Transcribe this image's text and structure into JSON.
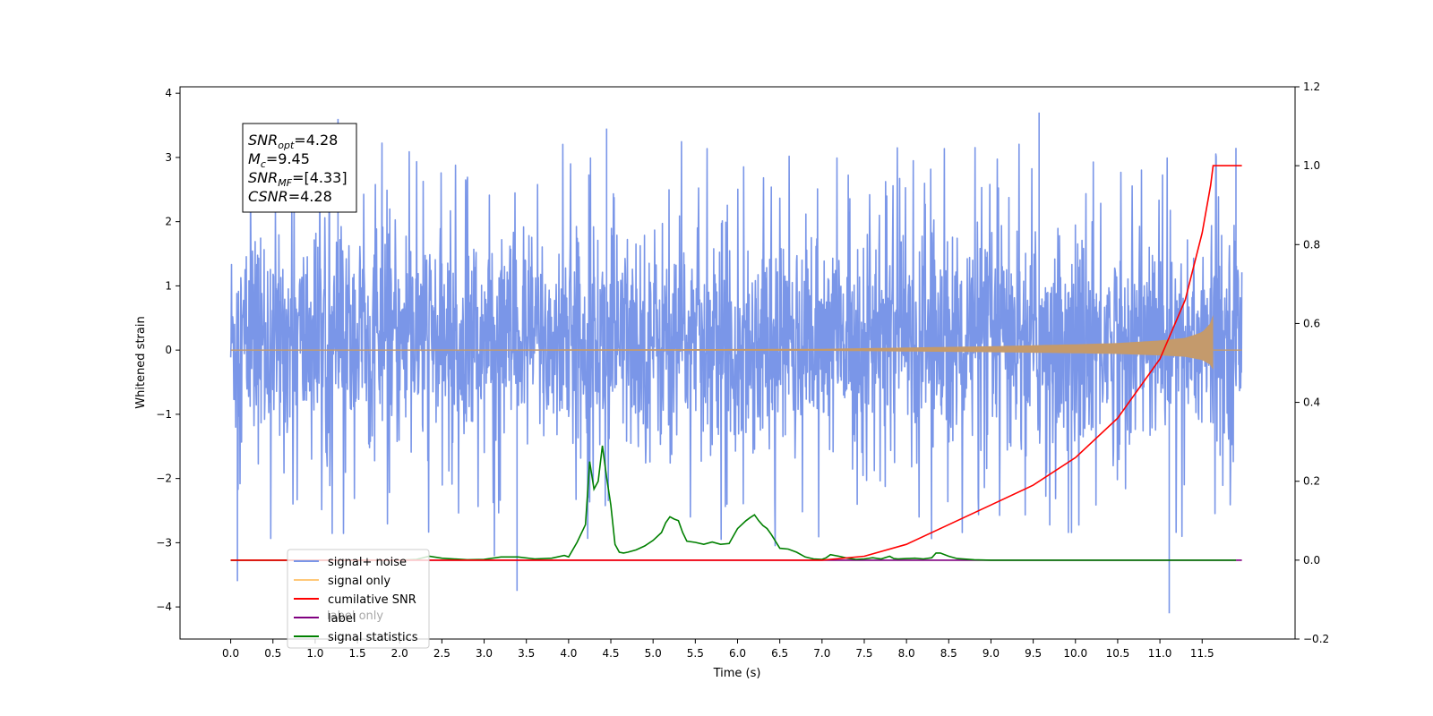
{
  "chart_data": {
    "type": "line",
    "xlabel": "Time (s)",
    "ylabel": "Whitened strain",
    "xlim": [
      -0.6,
      12.6
    ],
    "ylim": [
      -4.5,
      4.1
    ],
    "y2lim": [
      -0.2,
      1.2
    ],
    "x_ticks": [
      "0.0",
      "0.5",
      "1.0",
      "1.5",
      "2.0",
      "2.5",
      "3.0",
      "3.5",
      "4.0",
      "4.5",
      "5.0",
      "5.5",
      "6.0",
      "6.5",
      "7.0",
      "7.5",
      "8.0",
      "8.5",
      "9.0",
      "9.5",
      "10.0",
      "10.5",
      "11.0",
      "11.5"
    ],
    "x_tick_values": [
      0,
      0.5,
      1,
      1.5,
      2,
      2.5,
      3,
      3.5,
      4,
      4.5,
      5,
      5.5,
      6,
      6.5,
      7,
      7.5,
      8,
      8.5,
      9,
      9.5,
      10,
      10.5,
      11,
      11.5
    ],
    "y_ticks": [
      {
        "value": 4,
        "label": "4"
      },
      {
        "value": 3,
        "label": "3"
      },
      {
        "value": 2,
        "label": "2"
      },
      {
        "value": 1,
        "label": "1"
      },
      {
        "value": 0,
        "label": "0"
      },
      {
        "value": -1,
        "label": "−1"
      },
      {
        "value": -2,
        "label": "−2"
      },
      {
        "value": -3,
        "label": "−3"
      },
      {
        "value": -4,
        "label": "−4"
      }
    ],
    "y2_ticks": [
      {
        "value": 1.2,
        "label": "1.2"
      },
      {
        "value": 1.0,
        "label": "1.0"
      },
      {
        "value": 0.8,
        "label": "0.8"
      },
      {
        "value": 0.6,
        "label": "0.6"
      },
      {
        "value": 0.4,
        "label": "0.4"
      },
      {
        "value": 0.2,
        "label": "0.2"
      },
      {
        "value": 0.0,
        "label": "0.0"
      },
      {
        "value": -0.2,
        "label": "−0.2"
      }
    ],
    "grid": false,
    "legend_placement": "lower-left",
    "annotation": [
      {
        "base": "SNR",
        "sub": "opt",
        "rest": "=4.28"
      },
      {
        "base": "M",
        "sub": "c",
        "rest": "=9.45"
      },
      {
        "base": "SNR",
        "sub": "MF",
        "rest": "=[4.33]"
      },
      {
        "base": "CSNR",
        "sub": "",
        "rest": "=4.28"
      }
    ],
    "series": [
      {
        "name": "signal+ noise",
        "color": "#7a96e8",
        "axis": "left",
        "description_values": {
          "x_start": 0.0,
          "x_end": 11.97,
          "typical_range": [
            -2.0,
            2.3
          ],
          "min": -4.1,
          "max": 3.7
        },
        "spikes": [
          [
            0.08,
            -3.6
          ],
          [
            1.27,
            3.6
          ],
          [
            3.39,
            -3.75
          ],
          [
            4.45,
            3.45
          ],
          [
            9.57,
            3.7
          ],
          [
            11.11,
            -4.1
          ],
          [
            11.9,
            3.15
          ]
        ]
      },
      {
        "name": "signal only",
        "color": "#c49a6c",
        "axis": "left",
        "envelope_x": [
          0,
          7.0,
          8.0,
          9.0,
          10.0,
          10.5,
          11.0,
          11.3,
          11.5,
          11.6,
          11.63
        ],
        "envelope_y": [
          0.0,
          0.02,
          0.04,
          0.06,
          0.09,
          0.11,
          0.15,
          0.19,
          0.28,
          0.42,
          0.55
        ]
      },
      {
        "name": "cumilative SNR",
        "color": "#ff0000",
        "axis": "right",
        "x": [
          0,
          7.0,
          7.5,
          8.0,
          8.5,
          9.0,
          9.5,
          10.0,
          10.5,
          11.0,
          11.3,
          11.5,
          11.6,
          11.63,
          11.97
        ],
        "y": [
          0.0,
          0.0,
          0.01,
          0.04,
          0.09,
          0.14,
          0.19,
          0.26,
          0.36,
          0.51,
          0.66,
          0.83,
          0.95,
          1.0,
          1.0
        ]
      },
      {
        "name": "label",
        "color": "#800080",
        "axis": "right",
        "x": [
          0,
          11.97
        ],
        "y": [
          0.0,
          0.0
        ]
      },
      {
        "name": "signal statistics",
        "color": "#008000",
        "axis": "right",
        "x": [
          0,
          1.0,
          2.0,
          2.2,
          2.35,
          2.5,
          2.8,
          3.0,
          3.2,
          3.4,
          3.6,
          3.8,
          3.95,
          4.0,
          4.1,
          4.2,
          4.25,
          4.3,
          4.35,
          4.4,
          4.45,
          4.5,
          4.55,
          4.6,
          4.65,
          4.7,
          4.8,
          4.9,
          5.0,
          5.1,
          5.15,
          5.2,
          5.25,
          5.3,
          5.35,
          5.4,
          5.5,
          5.6,
          5.7,
          5.8,
          5.9,
          6.0,
          6.1,
          6.15,
          6.2,
          6.25,
          6.3,
          6.35,
          6.4,
          6.5,
          6.6,
          6.7,
          6.8,
          6.9,
          7.0,
          7.05,
          7.1,
          7.2,
          7.3,
          7.4,
          7.5,
          7.6,
          7.7,
          7.8,
          7.85,
          7.9,
          8.0,
          8.1,
          8.2,
          8.3,
          8.35,
          8.4,
          8.5,
          8.6,
          8.8,
          9.0,
          11.9
        ],
        "y": [
          0.0,
          0.0,
          0.0,
          0.002,
          0.01,
          0.005,
          0.001,
          0.002,
          0.008,
          0.008,
          0.003,
          0.005,
          0.012,
          0.008,
          0.045,
          0.09,
          0.25,
          0.18,
          0.2,
          0.29,
          0.21,
          0.14,
          0.04,
          0.02,
          0.018,
          0.02,
          0.026,
          0.036,
          0.05,
          0.07,
          0.095,
          0.11,
          0.104,
          0.1,
          0.07,
          0.048,
          0.045,
          0.04,
          0.046,
          0.04,
          0.042,
          0.08,
          0.1,
          0.108,
          0.115,
          0.1,
          0.088,
          0.08,
          0.065,
          0.03,
          0.028,
          0.02,
          0.008,
          0.003,
          0.002,
          0.006,
          0.014,
          0.01,
          0.005,
          0.002,
          0.003,
          0.006,
          0.003,
          0.01,
          0.004,
          0.003,
          0.004,
          0.005,
          0.003,
          0.006,
          0.018,
          0.018,
          0.01,
          0.004,
          0.001,
          0.0,
          0.0
        ]
      }
    ]
  },
  "legend": [
    {
      "label": "signal+ noise",
      "color": "#7a96e8"
    },
    {
      "label": "signal only",
      "color": "#ffc879"
    },
    {
      "label": "cumilative SNR",
      "color": "#ff0000"
    },
    {
      "label": "label",
      "color": "#800080"
    },
    {
      "label": "signal statistics",
      "color": "#008000"
    }
  ],
  "ghost_text": "label only"
}
